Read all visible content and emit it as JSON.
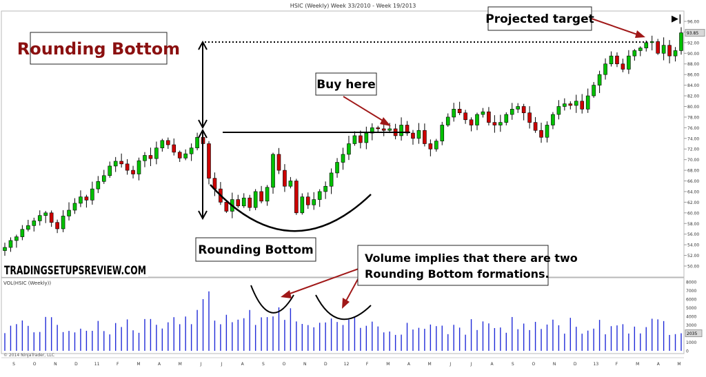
{
  "header": {
    "title": "HSIC (Weekly)  Week 33/2010 - Week 19/2013"
  },
  "volume_panel": {
    "label": "VOL(HSIC (Weekly))",
    "copyright": "© 2014 NinjaTrader, LLC"
  },
  "annotations": {
    "main_title": "Rounding Bottom",
    "projected_target": "Projected target",
    "buy_here": "Buy here",
    "pattern_label": "Rounding Bottom",
    "volume_note_line1": "Volume implies that there are two",
    "volume_note_line2": "Rounding Bottom formations.",
    "watermark": "TRADINGSETUPSREVIEW.COM",
    "end_marker": "▶|"
  },
  "colors": {
    "up": "#00c000",
    "down": "#cc0000",
    "volume": "#1f2ad8",
    "title_red": "#8b1010",
    "arrow_red": "#a01818"
  },
  "chart_data": [
    {
      "type": "candlestick",
      "title": "HSIC (Weekly)  Week 33/2010 - Week 19/2013",
      "ylim": [
        48,
        96
      ],
      "yticks": [
        50,
        52,
        54,
        56,
        58,
        60,
        62,
        64,
        66,
        68,
        70,
        72,
        74,
        76,
        78,
        80,
        82,
        84,
        86,
        88,
        90,
        92,
        94,
        96
      ],
      "current_price": 93.85,
      "resistance": 75,
      "target": 92,
      "x_labels": [
        "S",
        "O",
        "N",
        "D",
        "11",
        "F",
        "M",
        "A",
        "M",
        "J",
        "J",
        "A",
        "S",
        "O",
        "N",
        "D",
        "12",
        "F",
        "M",
        "A",
        "M",
        "J",
        "J",
        "A",
        "S",
        "O",
        "N",
        "D",
        "13",
        "F",
        "M",
        "A",
        "M"
      ],
      "close": [
        53.5,
        54.8,
        55.5,
        56.9,
        57.6,
        58.5,
        59.5,
        60.0,
        58.2,
        57.0,
        59.4,
        60.5,
        61.8,
        63.0,
        62.4,
        64.5,
        65.9,
        67.0,
        68.8,
        69.7,
        69.2,
        68.0,
        67.3,
        69.8,
        70.8,
        70.2,
        72.2,
        73.6,
        72.8,
        71.4,
        70.3,
        71.1,
        72.2,
        74.2,
        73.0,
        66.5,
        64.5,
        62.0,
        60.3,
        62.5,
        61.3,
        62.8,
        61.0,
        64.0,
        62.2,
        64.8,
        71.0,
        68.0,
        65.0,
        66.0,
        60.0,
        63.0,
        61.5,
        62.5,
        64.0,
        65.0,
        67.5,
        69.5,
        71.0,
        73.0,
        74.5,
        73.2,
        75.0,
        76.0,
        75.8,
        75.5,
        75.8,
        74.5,
        76.5,
        75.0,
        74.0,
        75.5,
        73.0,
        72.0,
        73.5,
        76.5,
        78.0,
        79.5,
        78.8,
        77.5,
        76.5,
        78.5,
        79.0,
        77.0,
        76.5,
        77.0,
        78.5,
        79.5,
        80.0,
        78.8,
        77.0,
        75.5,
        74.2,
        76.5,
        78.5,
        80.0,
        80.5,
        80.2,
        81.0,
        79.5,
        82.0,
        84.0,
        86.0,
        88.0,
        89.5,
        88.0,
        87.0,
        89.5,
        90.5,
        91.0,
        92.0,
        92.2,
        90.0,
        91.5,
        89.5,
        90.5,
        93.85
      ],
      "volume_ylim": [
        0,
        8000
      ],
      "volume_yticks": [
        0,
        1000,
        2000,
        3000,
        4000,
        5000,
        6000,
        7000,
        8000
      ],
      "volume_last": 2035
    }
  ]
}
